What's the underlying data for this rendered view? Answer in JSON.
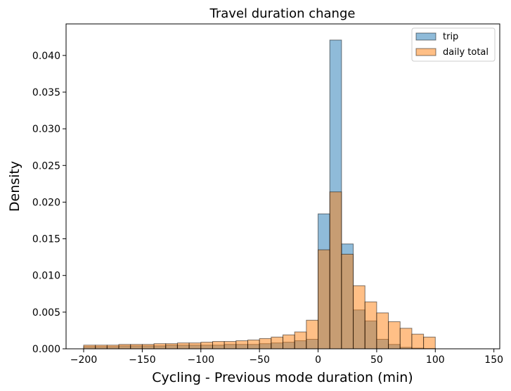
{
  "chart_data": {
    "type": "bar",
    "title": "Travel duration change",
    "xlabel": "Cycling - Previous mode duration (min)",
    "ylabel": "Density",
    "xlim": [
      -215,
      155
    ],
    "ylim": [
      0,
      0.0443
    ],
    "xticks": [
      -200,
      -150,
      -100,
      -50,
      0,
      50,
      100,
      150
    ],
    "xtick_labels": [
      "−200",
      "−150",
      "−100",
      "−50",
      "0",
      "50",
      "100",
      "150"
    ],
    "yticks": [
      0,
      0.005,
      0.01,
      0.015,
      0.02,
      0.025,
      0.03,
      0.035,
      0.04
    ],
    "ytick_labels": [
      "0.000",
      "0.005",
      "0.010",
      "0.015",
      "0.020",
      "0.025",
      "0.030",
      "0.035",
      "0.040"
    ],
    "grid": false,
    "legend_position": "top-right",
    "bin_edges": [
      -200,
      -190,
      -180,
      -170,
      -160,
      -150,
      -140,
      -130,
      -120,
      -110,
      -100,
      -90,
      -80,
      -70,
      -60,
      -50,
      -40,
      -30,
      -20,
      -10,
      0,
      10,
      20,
      30,
      40,
      50,
      60,
      70,
      80,
      90,
      100,
      110,
      120,
      130,
      140
    ],
    "series": [
      {
        "name": "trip",
        "color": "#1f77b4",
        "values": [
          0.0003,
          0.0003,
          0.0003,
          0.0004,
          0.0004,
          0.0004,
          0.0004,
          0.0005,
          0.0005,
          0.0005,
          0.0005,
          0.0005,
          0.0006,
          0.0006,
          0.0006,
          0.0007,
          0.0008,
          0.0009,
          0.0011,
          0.0013,
          0.0184,
          0.0421,
          0.0143,
          0.0053,
          0.0038,
          0.0013,
          0.0006,
          0.0002,
          0.0001,
          5e-05,
          0,
          0,
          0,
          0
        ]
      },
      {
        "name": "daily total",
        "color": "#ff7f0e",
        "values": [
          0.0005,
          0.0005,
          0.0005,
          0.0006,
          0.0006,
          0.0006,
          0.0007,
          0.0007,
          0.0008,
          0.0008,
          0.0009,
          0.001,
          0.001,
          0.0011,
          0.0012,
          0.0014,
          0.0016,
          0.0019,
          0.0023,
          0.0039,
          0.0135,
          0.0214,
          0.0129,
          0.0086,
          0.0064,
          0.0049,
          0.0037,
          0.0028,
          0.002,
          0.0016,
          0,
          0,
          0,
          0
        ]
      }
    ]
  }
}
